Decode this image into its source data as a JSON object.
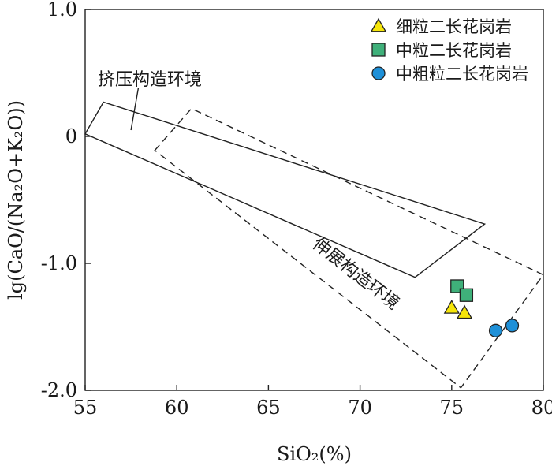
{
  "chart_data": {
    "type": "scatter",
    "title": "",
    "xlabel": "SiO₂(%)",
    "ylabel": "lg(CaO/(Na₂O+K₂O))",
    "xlim": [
      55,
      80
    ],
    "ylim": [
      -2.0,
      1.0
    ],
    "x_ticks": [
      55,
      60,
      65,
      70,
      75,
      80
    ],
    "y_ticks": [
      1.0,
      0,
      -1.0,
      -2.0
    ],
    "y_tick_labels": [
      "1.0",
      "0",
      "-1.0",
      "-2.0"
    ],
    "grid": false,
    "legend_position": "top-right",
    "series": [
      {
        "name": "细粒二长花岗岩",
        "marker": "triangle",
        "color": "#f5e50a",
        "points": [
          [
            75.0,
            -1.35
          ],
          [
            75.7,
            -1.39
          ]
        ]
      },
      {
        "name": "中粒二长花岗岩",
        "marker": "square",
        "color": "#3fb07a",
        "points": [
          [
            75.3,
            -1.18
          ],
          [
            75.8,
            -1.25
          ]
        ]
      },
      {
        "name": "中粗粒二长花岗岩",
        "marker": "circle",
        "color": "#1e90d8",
        "points": [
          [
            77.4,
            -1.53
          ],
          [
            78.3,
            -1.49
          ]
        ]
      }
    ],
    "regions": [
      {
        "name": "挤压构造环境",
        "style": "solid",
        "vertices": [
          [
            55.0,
            0.02
          ],
          [
            56.0,
            0.27
          ],
          [
            76.8,
            -0.69
          ],
          [
            73.0,
            -1.11
          ]
        ],
        "label_leader": [
          [
            57.5,
            0.05
          ],
          [
            57.9,
            0.38
          ]
        ]
      },
      {
        "name": "伸展构造环境",
        "style": "dashed",
        "vertices": [
          [
            58.8,
            -0.11
          ],
          [
            60.8,
            0.22
          ],
          [
            80.0,
            -1.09
          ],
          [
            75.5,
            -1.98
          ]
        ]
      }
    ]
  }
}
